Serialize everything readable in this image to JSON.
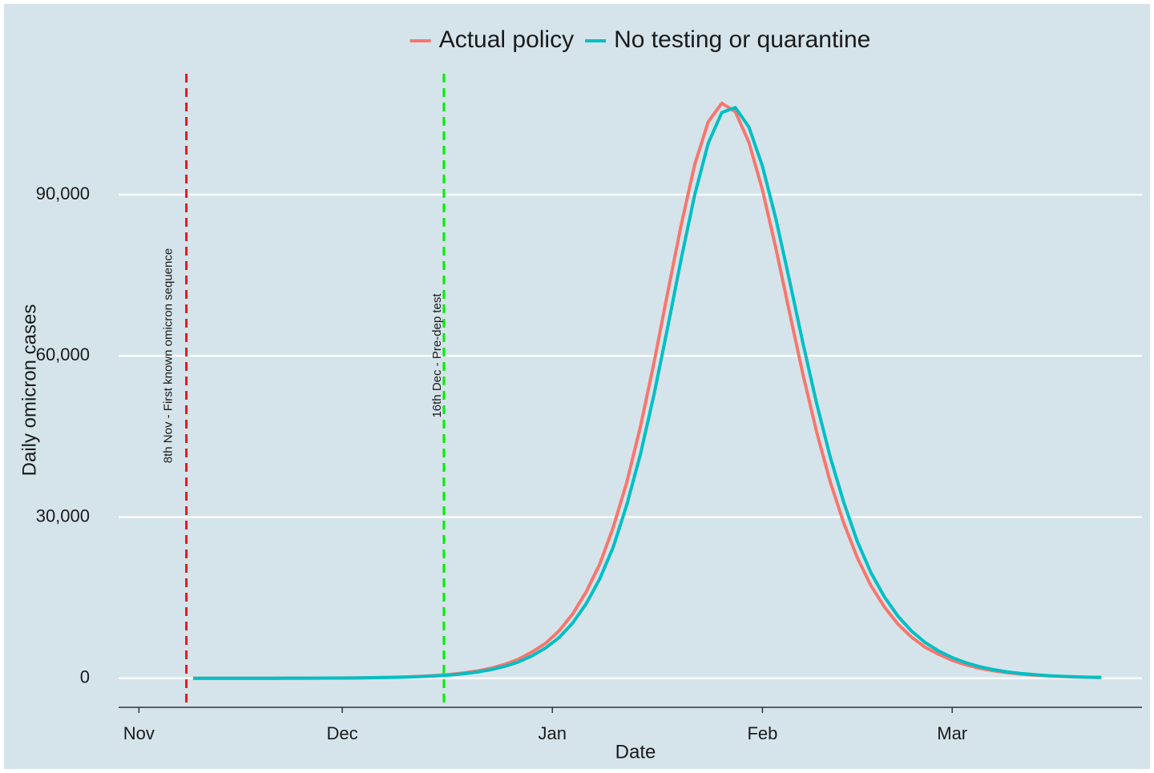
{
  "chart_data": {
    "type": "line",
    "x_label": "Date",
    "y_label": "Daily omicron cases",
    "x": [
      8,
      10,
      12,
      14,
      16,
      18,
      20,
      22,
      24,
      26,
      28,
      30,
      32,
      34,
      36,
      38,
      40,
      42,
      44,
      46,
      48,
      50,
      52,
      54,
      56,
      58,
      60,
      62,
      64,
      66,
      68,
      70,
      72,
      74,
      76,
      78,
      80,
      82,
      84,
      86,
      88,
      90,
      92,
      94,
      96,
      98,
      100,
      102,
      104,
      106,
      108,
      110,
      112,
      114,
      116,
      118,
      120,
      122,
      124,
      126,
      128,
      130,
      132,
      134,
      136,
      138,
      140,
      142
    ],
    "series": [
      {
        "name": "Actual policy",
        "color": "#f8766d",
        "values": [
          2,
          2,
          3,
          5,
          6,
          9,
          12,
          17,
          23,
          31,
          43,
          58,
          80,
          110,
          151,
          208,
          284,
          390,
          536,
          732,
          1010,
          1378,
          1897,
          2611,
          3552,
          4900,
          6500,
          8840,
          11980,
          16110,
          21270,
          28160,
          36550,
          46860,
          58730,
          71660,
          84290,
          95560,
          103550,
          106990,
          105430,
          99740,
          90860,
          79930,
          68040,
          56410,
          45820,
          36550,
          28880,
          22440,
          17260,
          13270,
          10070,
          7650,
          5790,
          4460,
          3340,
          2510,
          1880,
          1410,
          1060,
          795,
          596,
          446,
          333,
          250,
          187,
          140
        ]
      },
      {
        "name": "No testing or quarantine",
        "color": "#00bfc4",
        "values": [
          1,
          2,
          2,
          4,
          5,
          7,
          10,
          14,
          20,
          27,
          37,
          50,
          68,
          94,
          129,
          177,
          243,
          333,
          457,
          626,
          860,
          1180,
          1617,
          2226,
          3045,
          4172,
          5644,
          7580,
          10290,
          13890,
          18510,
          24470,
          32360,
          41710,
          52800,
          65200,
          77980,
          89930,
          99560,
          105270,
          106210,
          102590,
          95300,
          85400,
          73990,
          62230,
          51120,
          41190,
          32720,
          25460,
          19680,
          15130,
          11560,
          8780,
          6660,
          5080,
          3860,
          2900,
          2170,
          1630,
          1220,
          918,
          688,
          516,
          385,
          289,
          216,
          162
        ]
      }
    ],
    "xlim": [
      -3,
      148
    ],
    "xticks": [
      {
        "value": 0,
        "label": "Nov"
      },
      {
        "value": 30,
        "label": "Dec"
      },
      {
        "value": 61,
        "label": "Jan"
      },
      {
        "value": 92,
        "label": "Feb"
      },
      {
        "value": 120,
        "label": "Mar"
      }
    ],
    "ylim": [
      -5400,
      112800
    ],
    "yticks": [
      0,
      {
        "value": 30000,
        "label": "30,000"
      },
      {
        "value": 60000,
        "label": "60,000"
      },
      {
        "value": 90000,
        "label": "90,000"
      }
    ],
    "grid": true,
    "legend": "top",
    "background": "#d5e4eb",
    "annotations": [
      {
        "x": 7,
        "label": "8th Nov - First known omicron sequence",
        "color": "#e31a1c"
      },
      {
        "x": 45,
        "label": "16th Dec - Pre-dep test",
        "color": "#00ee00"
      }
    ]
  }
}
